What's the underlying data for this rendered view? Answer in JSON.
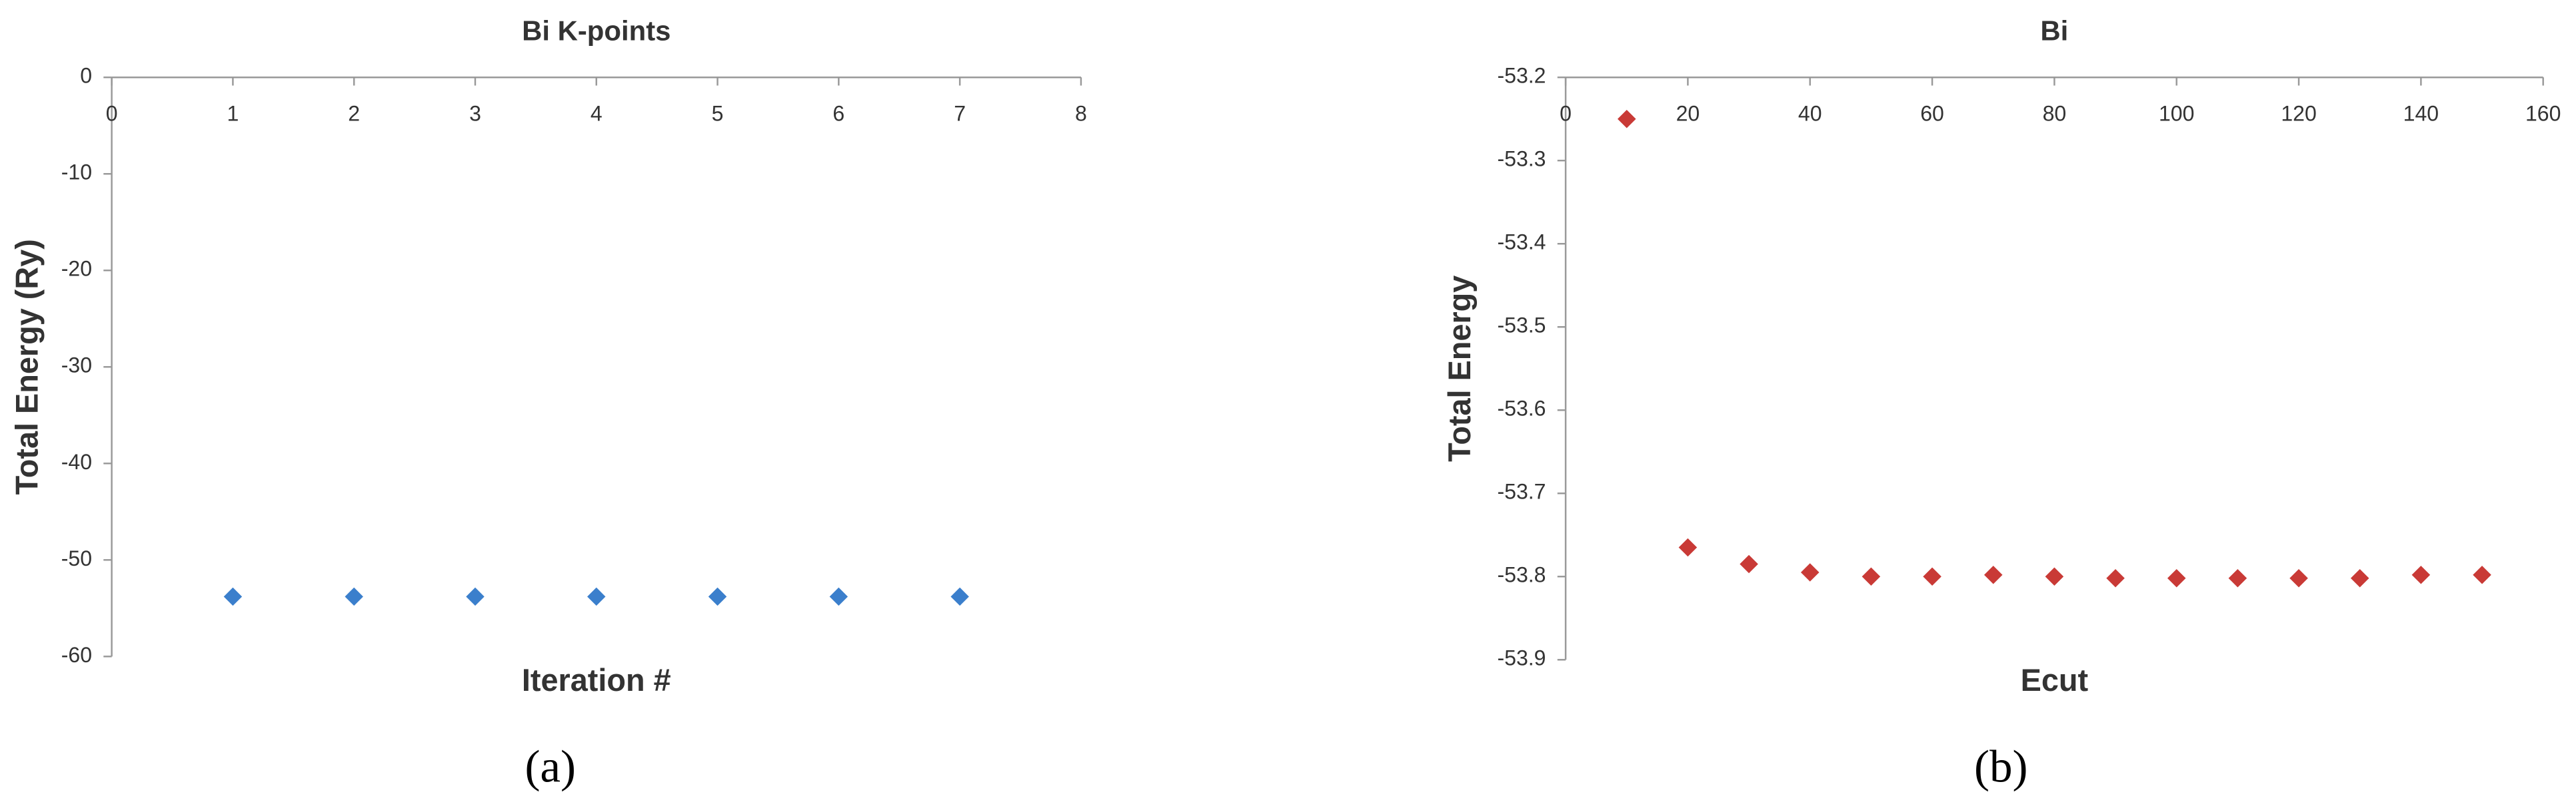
{
  "chart_data": [
    {
      "type": "scatter",
      "title": "Bi K-points",
      "x_label": "Iteration #",
      "y_label": "Total Energy (Ry)",
      "caption": "(a)",
      "series": [
        {
          "name": "Bi K-points",
          "color": "#3b7fcc",
          "x": [
            1,
            2,
            3,
            4,
            5,
            6,
            7
          ],
          "values": [
            -53.8,
            -53.8,
            -53.8,
            -53.8,
            -53.8,
            -53.8,
            -53.8
          ]
        }
      ],
      "xlim": [
        0,
        8
      ],
      "xticks": [
        0,
        1,
        2,
        3,
        4,
        5,
        6,
        7,
        8
      ],
      "ylim": [
        -60,
        0
      ],
      "yticks": [
        0,
        -10,
        -20,
        -30,
        -40,
        -50,
        -60
      ],
      "grid": false
    },
    {
      "type": "scatter",
      "title": "Bi",
      "x_label": "Ecut",
      "y_label": "Total Energy",
      "caption": "(b)",
      "series": [
        {
          "name": "Bi",
          "color": "#c93a36",
          "x": [
            10,
            20,
            30,
            40,
            50,
            60,
            70,
            80,
            90,
            100,
            110,
            120,
            130,
            140,
            150
          ],
          "values": [
            -53.25,
            -53.765,
            -53.785,
            -53.795,
            -53.8,
            -53.8,
            -53.798,
            -53.8,
            -53.802,
            -53.802,
            -53.802,
            -53.802,
            -53.802,
            -53.798,
            -53.798
          ]
        }
      ],
      "xlim": [
        0,
        160
      ],
      "xticks": [
        0,
        20,
        40,
        60,
        80,
        100,
        120,
        140,
        160
      ],
      "ylim": [
        -53.9,
        -53.2
      ],
      "yticks": [
        -53.2,
        -53.3,
        -53.4,
        -53.5,
        -53.6,
        -53.7,
        -53.8,
        -53.9
      ],
      "grid": false
    }
  ]
}
